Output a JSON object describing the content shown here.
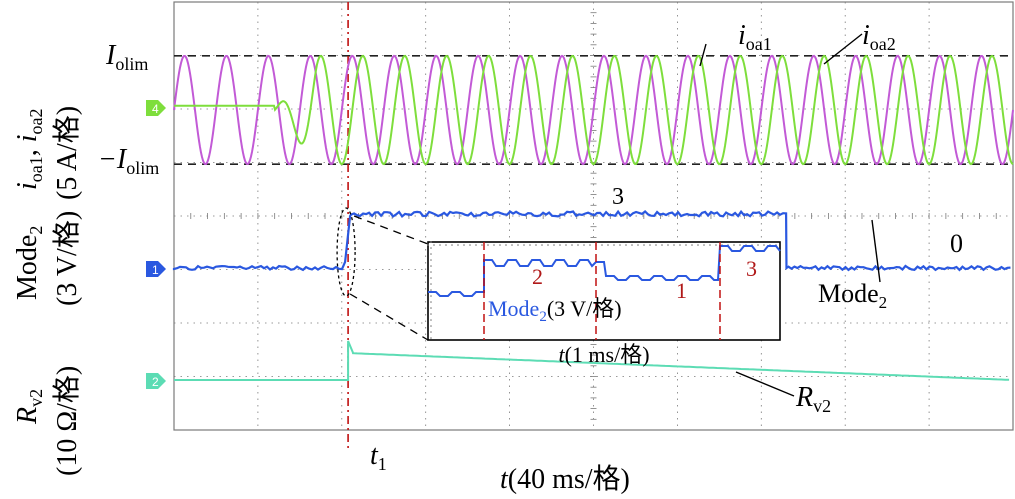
{
  "colors": {
    "ioa1": "#c25ad6",
    "ioa2": "#7ede3c",
    "mode2": "#2a58e0",
    "rv2": "#5cdcb4",
    "red_annot": "#b01818",
    "grid": "#7a7a7a",
    "marker_red": "#c01010"
  },
  "texts": {
    "ylabel_top_1": "i",
    "ylabel_top_sub1": "oa1",
    "ylabel_top_sep": ", ",
    "ylabel_top_2": "i",
    "ylabel_top_sub2": "oa2",
    "ylabel_top_scale": "(5 A/格)",
    "ylabel_mid_1": "Mode",
    "ylabel_mid_sub": "2",
    "ylabel_mid_scale": "(3 V/格)",
    "ylabel_bot_1": "R",
    "ylabel_bot_sub": "v2",
    "ylabel_bot_scale": "(10 Ω/格)",
    "iolim_main": "I",
    "iolim_sub": "olim",
    "neg_iolim_main": "−I",
    "neg_iolim_sub": "olim",
    "legend_ioa1_main": "i",
    "legend_ioa1_sub": "oa1",
    "legend_ioa2_main": "i",
    "legend_ioa2_sub": "oa2",
    "state_3": "3",
    "state_0": "0",
    "mode2_label_main": "Mode",
    "mode2_label_sub": "2",
    "rv2_label_main": "R",
    "rv2_label_sub": "v2",
    "inset_state_2": "2",
    "inset_state_1": "1",
    "inset_state_3": "3",
    "inset_label_main": "Mode",
    "inset_label_sub": "2",
    "inset_label_scale": "(3 V/格)",
    "inset_time_main": "t",
    "inset_time_scale": "(1 ms/格)",
    "t1_main": "t",
    "t1_sub": "1",
    "xlabel_main": "t",
    "xlabel_scale": "(40 ms/格)",
    "marker_ch4": "4",
    "marker_ch1": "1",
    "marker_ch2": "2"
  },
  "chart_data": {
    "type": "line",
    "xlabel": "t(40 ms/格)",
    "time_per_div_ms": 40,
    "x_divisions": 10,
    "event_time_label": "t1",
    "event_time_ms": 83,
    "mode2_end_time_ms": 292,
    "series": [
      {
        "name": "ioa1",
        "unit": "A",
        "scale_per_div": 5,
        "frequency_hz": 50,
        "amplitude_div": 1.9,
        "color": "#c25ad6"
      },
      {
        "name": "ioa2",
        "unit": "A",
        "scale_per_div": 5,
        "frequency_hz": 50,
        "amplitude_div_before": 0,
        "amplitude_div_after": 1.9,
        "ramp_start_ms": 48,
        "color": "#7ede3c"
      },
      {
        "name": "Mode2",
        "unit": "V",
        "scale_per_div": 3,
        "state_sequence": [
          "0",
          "3",
          "0"
        ],
        "states_inside_inset": [
          "2",
          "1",
          "3"
        ],
        "color": "#2a58e0"
      },
      {
        "name": "Rv2",
        "unit": "Ω",
        "scale_per_div": 10,
        "level_before_div": 0,
        "step_at_t1_div": 0.45,
        "decays_to_div": 0,
        "color": "#5cdcb4"
      }
    ],
    "reference_lines": [
      {
        "label": "Iolim",
        "div": 1.9
      },
      {
        "label": "-Iolim",
        "div": -1.9
      }
    ],
    "grid": true
  }
}
